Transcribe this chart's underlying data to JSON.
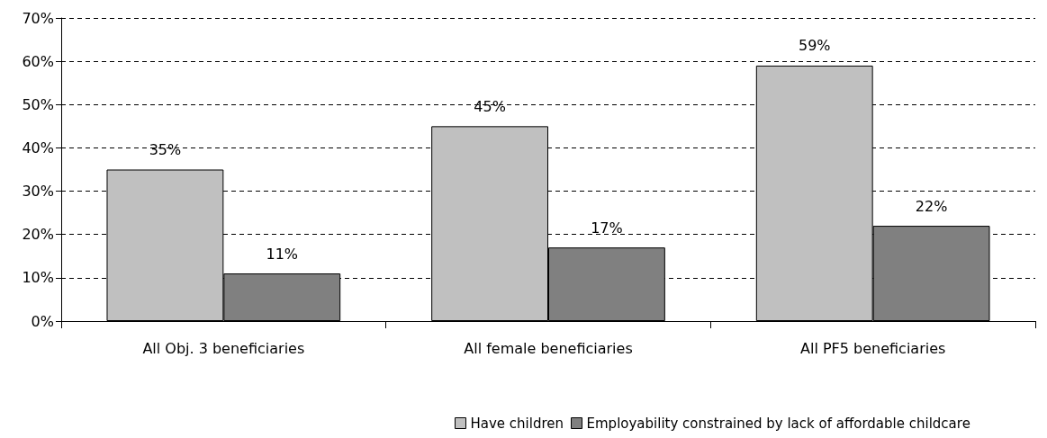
{
  "chart_data": {
    "type": "bar",
    "categories": [
      "All Obj. 3 beneficiaries",
      "All female beneficiaries",
      "All PF5 beneficiaries"
    ],
    "series": [
      {
        "name": "Have children",
        "color": "#c0c0c0",
        "values": [
          35,
          45,
          59
        ],
        "value_labels": [
          "35%",
          "45%",
          "59%"
        ]
      },
      {
        "name": "Employability constrained by lack of affordable childcare",
        "color": "#808080",
        "values": [
          11,
          17,
          22
        ],
        "value_labels": [
          "11%",
          "17%",
          "22%"
        ]
      }
    ],
    "ylim": [
      0,
      70
    ],
    "yticks": [
      {
        "value": 0,
        "label": "0%"
      },
      {
        "value": 10,
        "label": "10%"
      },
      {
        "value": 20,
        "label": "20%"
      },
      {
        "value": 30,
        "label": "30%"
      },
      {
        "value": 40,
        "label": "40%"
      },
      {
        "value": 50,
        "label": "50%"
      },
      {
        "value": 60,
        "label": "60%"
      },
      {
        "value": 70,
        "label": "70%"
      }
    ],
    "grid": "y",
    "legend": "bottom"
  }
}
